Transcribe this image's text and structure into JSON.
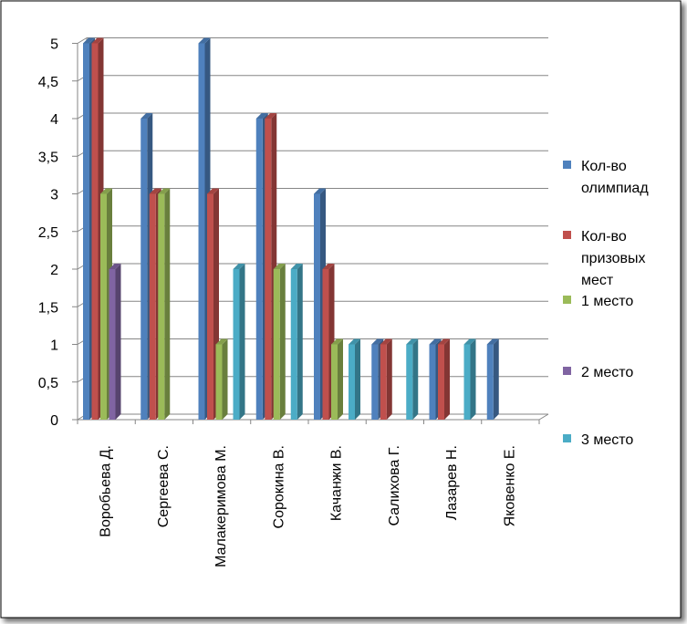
{
  "chart_data": {
    "type": "bar",
    "title": "",
    "xlabel": "",
    "ylabel": "",
    "ylim": [
      0,
      5
    ],
    "y_ticks": [
      "0",
      "0,5",
      "1",
      "1,5",
      "2",
      "2,5",
      "3",
      "3,5",
      "4",
      "4,5",
      "5"
    ],
    "grid": true,
    "legend_position": "right",
    "style": "3d-clustered-column",
    "categories": [
      "Воробьева Д.",
      "Сергеева С.",
      "Малакеримова М.",
      "Сорокина В.",
      "Качанжи В.",
      "Салихова Г.",
      "Лазарев Н.",
      "Яковенко Е."
    ],
    "series": [
      {
        "name_lines": [
          "Кол-во",
          "олимпиад"
        ],
        "color": "#4F81BD",
        "values": [
          5,
          4,
          5,
          4,
          3,
          1,
          1,
          1
        ]
      },
      {
        "name_lines": [
          "Кол-во",
          "призовых",
          "мест"
        ],
        "color": "#C0504D",
        "values": [
          5,
          3,
          3,
          4,
          2,
          1,
          1,
          0
        ]
      },
      {
        "name_lines": [
          "1 место"
        ],
        "color": "#9BBB59",
        "values": [
          3,
          3,
          1,
          2,
          1,
          0,
          0,
          0
        ]
      },
      {
        "name_lines": [
          "2 место"
        ],
        "color": "#8064A2",
        "values": [
          2,
          0,
          0,
          0,
          0,
          0,
          0,
          0
        ]
      },
      {
        "name_lines": [
          "3 место"
        ],
        "color": "#4BACC6",
        "values": [
          0,
          0,
          2,
          2,
          1,
          1,
          1,
          0
        ]
      }
    ]
  }
}
